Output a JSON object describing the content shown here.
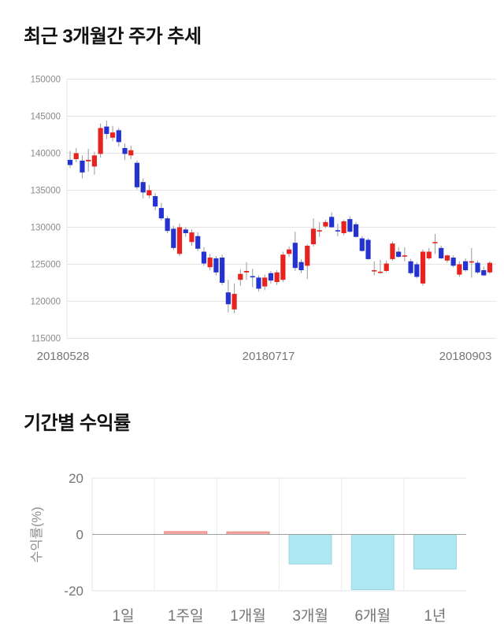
{
  "price_chart": {
    "title": "최근 3개월간 주가 추세"
  },
  "returns_chart": {
    "title": "기간별 수익률"
  },
  "chart_data": [
    {
      "type": "candlestick",
      "title": "최근 3개월간 주가 추세",
      "x_tick_labels": [
        "20180528",
        "20180717",
        "20180903"
      ],
      "y_ticks": [
        115000,
        120000,
        125000,
        130000,
        135000,
        140000,
        145000,
        150000
      ],
      "ylim": [
        115000,
        150000
      ],
      "grid": true,
      "up_color": "#e8231f",
      "down_color": "#2433cf",
      "wick_color": "#999999",
      "candle_columns": [
        "open",
        "high",
        "low",
        "close"
      ],
      "candles": [
        [
          139100,
          140300,
          138000,
          138400
        ],
        [
          139200,
          140700,
          138800,
          140000
        ],
        [
          139000,
          139700,
          136600,
          137400
        ],
        [
          138900,
          140600,
          137500,
          139100
        ],
        [
          138200,
          140200,
          137100,
          139700
        ],
        [
          139900,
          144000,
          139400,
          143400
        ],
        [
          143600,
          144400,
          141900,
          142600
        ],
        [
          142100,
          143700,
          141600,
          142800
        ],
        [
          143100,
          143400,
          140900,
          141500
        ],
        [
          140700,
          141300,
          139100,
          139900
        ],
        [
          139700,
          141000,
          139200,
          140400
        ],
        [
          138700,
          139000,
          135100,
          135400
        ],
        [
          136100,
          136600,
          133900,
          134700
        ],
        [
          134300,
          135700,
          133900,
          135000
        ],
        [
          134200,
          134600,
          132300,
          132800
        ],
        [
          132600,
          133300,
          130900,
          131200
        ],
        [
          131200,
          131500,
          129200,
          129500
        ],
        [
          129800,
          130200,
          126900,
          127200
        ],
        [
          126400,
          130500,
          126100,
          130000
        ],
        [
          129700,
          130000,
          128700,
          129200
        ],
        [
          128000,
          129700,
          127500,
          129300
        ],
        [
          128800,
          129300,
          126800,
          127100
        ],
        [
          126700,
          127300,
          124800,
          125100
        ],
        [
          124600,
          126400,
          124200,
          125900
        ],
        [
          125800,
          126100,
          123500,
          123900
        ],
        [
          125900,
          126300,
          122200,
          122500
        ],
        [
          121200,
          122900,
          118500,
          119600
        ],
        [
          118900,
          122400,
          118400,
          121000
        ],
        [
          122900,
          124300,
          122100,
          123700
        ],
        [
          123900,
          125300,
          122900,
          124100
        ],
        [
          123400,
          124400,
          121900,
          123300
        ],
        [
          123200,
          123500,
          121300,
          121700
        ],
        [
          122000,
          123600,
          121500,
          123200
        ],
        [
          123800,
          124100,
          122400,
          122800
        ],
        [
          122600,
          124200,
          122200,
          123900
        ],
        [
          122900,
          126700,
          122600,
          126300
        ],
        [
          126400,
          127400,
          126000,
          127000
        ],
        [
          127900,
          129400,
          124100,
          124500
        ],
        [
          125300,
          125700,
          123800,
          124200
        ],
        [
          124800,
          127700,
          123000,
          127500
        ],
        [
          127700,
          131200,
          127400,
          129800
        ],
        [
          129500,
          130700,
          128700,
          129600
        ],
        [
          130100,
          131000,
          129900,
          130700
        ],
        [
          131400,
          132000,
          129900,
          130000
        ],
        [
          129600,
          130500,
          128800,
          129500
        ],
        [
          129200,
          131000,
          128900,
          130800
        ],
        [
          131100,
          131500,
          129300,
          129400
        ],
        [
          130400,
          130700,
          128600,
          128700
        ],
        [
          128500,
          128800,
          126700,
          126800
        ],
        [
          128300,
          128500,
          125600,
          125700
        ],
        [
          124100,
          125400,
          123500,
          124200
        ],
        [
          123900,
          125600,
          123700,
          124000
        ],
        [
          124100,
          125500,
          123900,
          125100
        ],
        [
          125700,
          128100,
          125500,
          127800
        ],
        [
          126700,
          127300,
          125900,
          126000
        ],
        [
          126100,
          127300,
          125400,
          126200
        ],
        [
          125400,
          125700,
          123600,
          123800
        ],
        [
          125000,
          125300,
          123100,
          123300
        ],
        [
          122400,
          127000,
          122100,
          126700
        ],
        [
          125800,
          127200,
          125600,
          126700
        ],
        [
          127900,
          129100,
          126400,
          128000
        ],
        [
          127200,
          127500,
          125700,
          125800
        ],
        [
          125500,
          126300,
          125200,
          126200
        ],
        [
          125900,
          126200,
          124600,
          124800
        ],
        [
          123600,
          125400,
          123300,
          125000
        ],
        [
          125400,
          125800,
          124000,
          124200
        ],
        [
          125300,
          127200,
          123200,
          125400
        ],
        [
          125200,
          125500,
          123700,
          123900
        ],
        [
          124200,
          124700,
          123400,
          123500
        ],
        [
          123900,
          125400,
          123700,
          125200
        ]
      ]
    },
    {
      "type": "bar",
      "title": "기간별 수익률",
      "categories": [
        "1일",
        "1주일",
        "1개월",
        "3개월",
        "6개월",
        "1년"
      ],
      "values": [
        0.0,
        1.0,
        0.9,
        -10.5,
        -19.6,
        -12.3
      ],
      "ylabel": "수익률(%)",
      "y_ticks": [
        20,
        0,
        -20
      ],
      "y_tick_labels": [
        "20",
        "0",
        "-20"
      ],
      "ylim": [
        -20,
        20
      ],
      "grid": true,
      "legend": "none",
      "positive_color": "#f4a8a3",
      "positive_border": "#ee7f78",
      "negative_color": "#aee6f1",
      "negative_border": "#99d7e5",
      "zero_line_color": "#9e9e9e",
      "grid_color": "#e4e4e4"
    }
  ]
}
